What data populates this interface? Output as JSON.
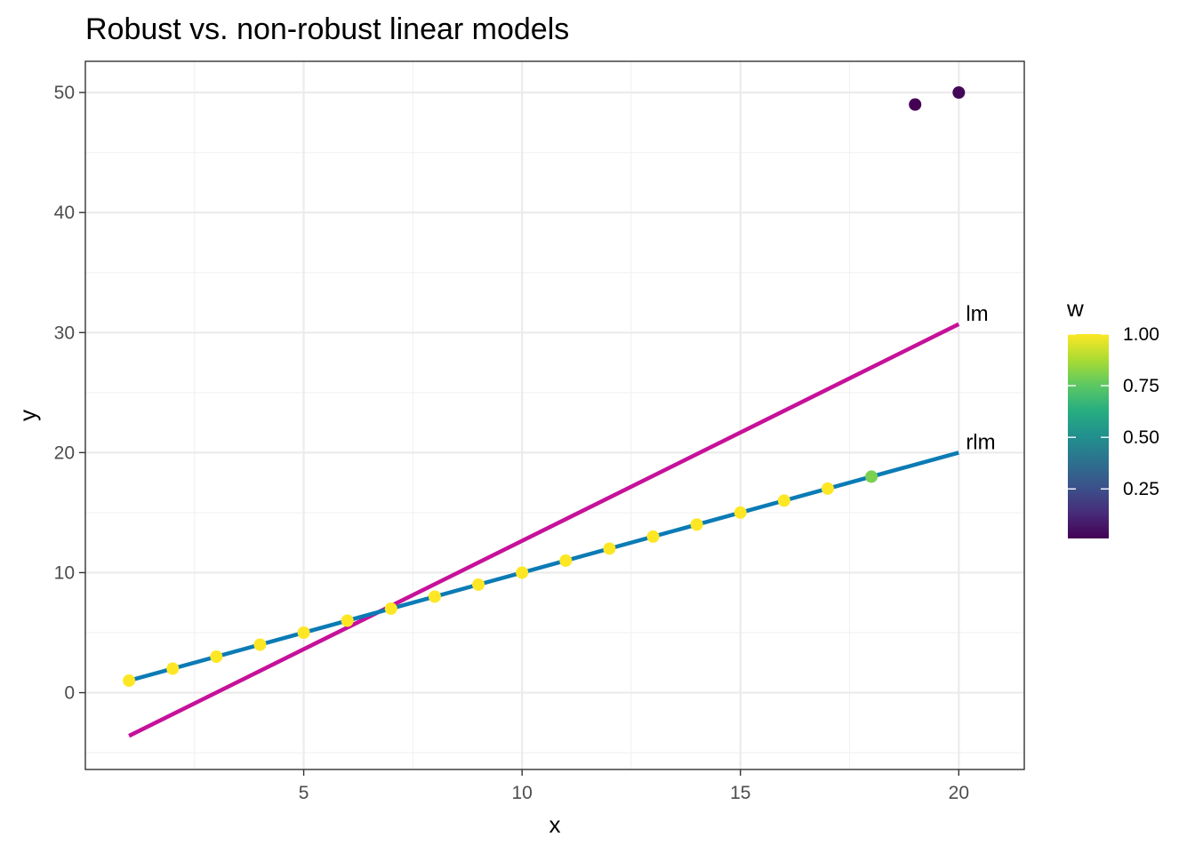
{
  "chart_data": {
    "type": "line",
    "title": "Robust vs. non-robust linear models",
    "xlabel": "x",
    "ylabel": "y",
    "xlim": [
      0,
      21.5
    ],
    "ylim": [
      -6.4,
      52.6
    ],
    "x_ticks": [
      5,
      10,
      15,
      20
    ],
    "y_ticks": [
      0,
      10,
      20,
      30,
      40,
      50
    ],
    "grid": true,
    "points": {
      "x": [
        1,
        2,
        3,
        4,
        5,
        6,
        7,
        8,
        9,
        10,
        11,
        12,
        13,
        14,
        15,
        16,
        17,
        18,
        19,
        20
      ],
      "y": [
        1,
        2,
        3,
        4,
        5,
        6,
        7,
        8,
        9,
        10,
        11,
        12,
        13,
        14,
        15,
        16,
        17,
        18,
        49,
        50
      ],
      "w": [
        1,
        1,
        1,
        1,
        1,
        1,
        1,
        1,
        1,
        1,
        1,
        1,
        1,
        1,
        1,
        1,
        1,
        0.8,
        0.01,
        0.03
      ]
    },
    "series": [
      {
        "name": "lm",
        "x": [
          1,
          20
        ],
        "y": [
          -3.6,
          30.7
        ],
        "color": "#c6119a"
      },
      {
        "name": "rlm",
        "x": [
          1,
          20
        ],
        "y": [
          1,
          20
        ],
        "color": "#0b7bb5"
      }
    ],
    "legend": {
      "title": "w",
      "position": "right",
      "type": "colorbar",
      "colormap": "viridis",
      "range": [
        0.01,
        1.0
      ],
      "ticks": [
        {
          "value": 0.25,
          "label": "0.25"
        },
        {
          "value": 0.5,
          "label": "0.50"
        },
        {
          "value": 0.75,
          "label": "0.75"
        },
        {
          "value": 1.0,
          "label": "1.00"
        }
      ]
    }
  }
}
